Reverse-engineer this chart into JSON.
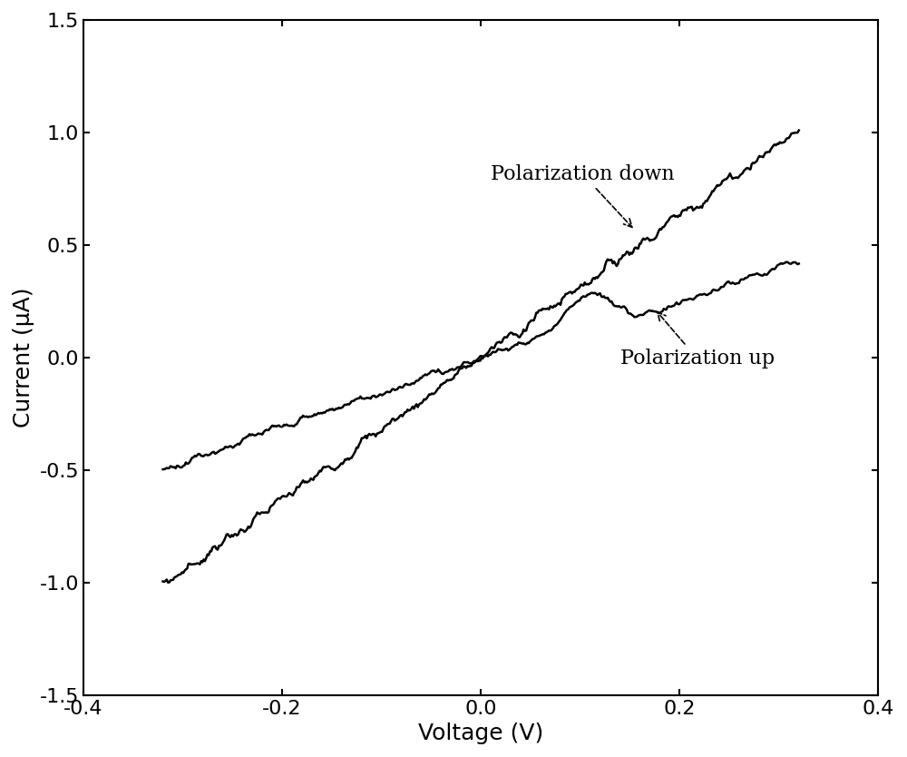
{
  "title": "",
  "xlabel": "Voltage (V)",
  "ylabel": "Current (μA)",
  "xlim": [
    -0.4,
    0.4
  ],
  "ylim": [
    -1.5,
    1.5
  ],
  "xticks": [
    -0.4,
    -0.2,
    0.0,
    0.2,
    0.4
  ],
  "yticks": [
    -1.5,
    -1.0,
    -0.5,
    0.0,
    0.5,
    1.0,
    1.5
  ],
  "line_color": "#000000",
  "background_color": "#ffffff",
  "annotation_pol_down": "Polarization down",
  "annotation_pol_up": "Polarization up",
  "fontsize_label": 18,
  "fontsize_tick": 16,
  "fontsize_annot": 16
}
